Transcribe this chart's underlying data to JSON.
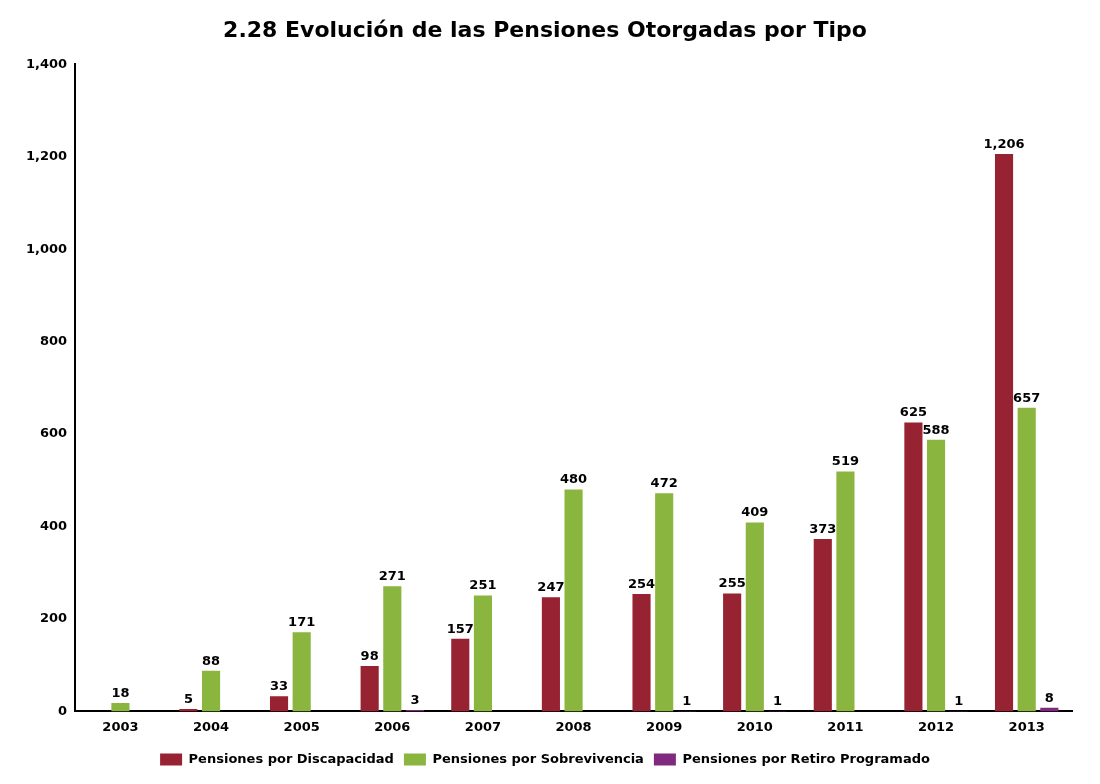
{
  "chart_data": {
    "type": "bar",
    "title": "2.28 Evolución de las Pensiones Otorgadas por Tipo",
    "categories": [
      "2003",
      "2004",
      "2005",
      "2006",
      "2007",
      "2008",
      "2009",
      "2010",
      "2011",
      "2012",
      "2013"
    ],
    "series": [
      {
        "name": "Pensiones por Discapacidad",
        "color": "#962232",
        "values": [
          null,
          5,
          33,
          98,
          157,
          247,
          254,
          255,
          373,
          625,
          1206
        ],
        "value_labels": [
          null,
          "5",
          "33",
          "98",
          "157",
          "247",
          "254",
          "255",
          "373",
          "625",
          "1,206"
        ]
      },
      {
        "name": "Pensiones por Sobrevivencia",
        "color": "#8ab53f",
        "values": [
          18,
          88,
          171,
          271,
          251,
          480,
          472,
          409,
          519,
          588,
          657
        ],
        "value_labels": [
          "18",
          "88",
          "171",
          "271",
          "251",
          "480",
          "472",
          "409",
          "519",
          "588",
          "657"
        ]
      },
      {
        "name": "Pensiones por Retiro Programado",
        "color": "#7f2a7e",
        "values": [
          null,
          null,
          null,
          3,
          null,
          null,
          1,
          1,
          null,
          1,
          8
        ],
        "value_labels": [
          null,
          null,
          null,
          "3",
          null,
          null,
          "1",
          "1",
          null,
          "1",
          "8"
        ]
      }
    ],
    "ylim": [
      0,
      1400
    ],
    "yticks": [
      0,
      200,
      400,
      600,
      800,
      {
        "value": 1000,
        "label": "1,000"
      },
      {
        "value": 1200,
        "label": "1,200"
      },
      {
        "value": 1400,
        "label": "1,400"
      }
    ],
    "grid": false,
    "legend": "bottom"
  }
}
